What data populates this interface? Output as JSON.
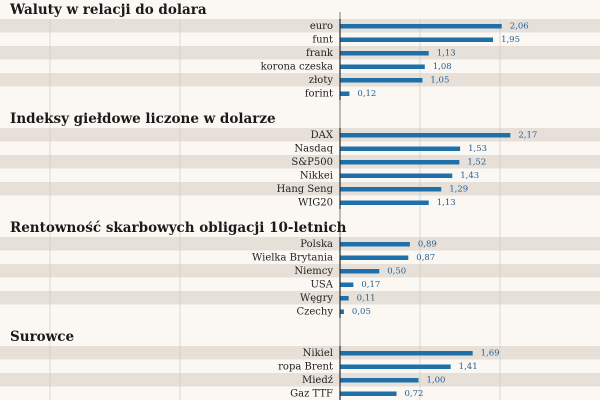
{
  "colors": {
    "background": "#fbf8f4",
    "stripe": "#e7e0d8",
    "bar": "#1f6fa8",
    "value_text": "#1f5f94",
    "grid": "#c9c1b8",
    "axis": "#2a2a2a"
  },
  "chart_data": {
    "type": "bar",
    "orientation": "horizontal",
    "xlim": [
      0,
      2.5
    ],
    "grid": true,
    "sections": [
      {
        "title": "Waluty w relacji do dolara",
        "rows": [
          {
            "label": "euro",
            "value": 2.06,
            "value_text": "2,06"
          },
          {
            "label": "funt",
            "value": 1.95,
            "value_text": "1,95"
          },
          {
            "label": "frank",
            "value": 1.13,
            "value_text": "1,13"
          },
          {
            "label": "korona czeska",
            "value": 1.08,
            "value_text": "1,08"
          },
          {
            "label": "złoty",
            "value": 1.05,
            "value_text": "1,05"
          },
          {
            "label": "forint",
            "value": 0.12,
            "value_text": "0,12"
          }
        ]
      },
      {
        "title": "Indeksy giełdowe liczone w dolarze",
        "rows": [
          {
            "label": "DAX",
            "value": 2.17,
            "value_text": "2,17"
          },
          {
            "label": "Nasdaq",
            "value": 1.53,
            "value_text": "1,53"
          },
          {
            "label": "S&P500",
            "value": 1.52,
            "value_text": "1,52"
          },
          {
            "label": "Nikkei",
            "value": 1.43,
            "value_text": "1,43"
          },
          {
            "label": "Hang Seng",
            "value": 1.29,
            "value_text": "1,29"
          },
          {
            "label": "WIG20",
            "value": 1.13,
            "value_text": "1,13"
          }
        ]
      },
      {
        "title": "Rentowność skarbowych obligacji 10-letnich",
        "rows": [
          {
            "label": "Polska",
            "value": 0.89,
            "value_text": "0,89"
          },
          {
            "label": "Wielka Brytania",
            "value": 0.87,
            "value_text": "0,87"
          },
          {
            "label": "Niemcy",
            "value": 0.5,
            "value_text": "0,50"
          },
          {
            "label": "USA",
            "value": 0.17,
            "value_text": "0,17"
          },
          {
            "label": "Węgry",
            "value": 0.11,
            "value_text": "0,11"
          },
          {
            "label": "Czechy",
            "value": 0.05,
            "value_text": "0,05"
          }
        ]
      },
      {
        "title": "Surowce",
        "rows": [
          {
            "label": "Nikiel",
            "value": 1.69,
            "value_text": "1,69"
          },
          {
            "label": "ropa Brent",
            "value": 1.41,
            "value_text": "1,41"
          },
          {
            "label": "Miedź",
            "value": 1.0,
            "value_text": "1,00"
          },
          {
            "label": "Gaz TTF",
            "value": 0.72,
            "value_text": "0,72"
          }
        ]
      }
    ]
  }
}
